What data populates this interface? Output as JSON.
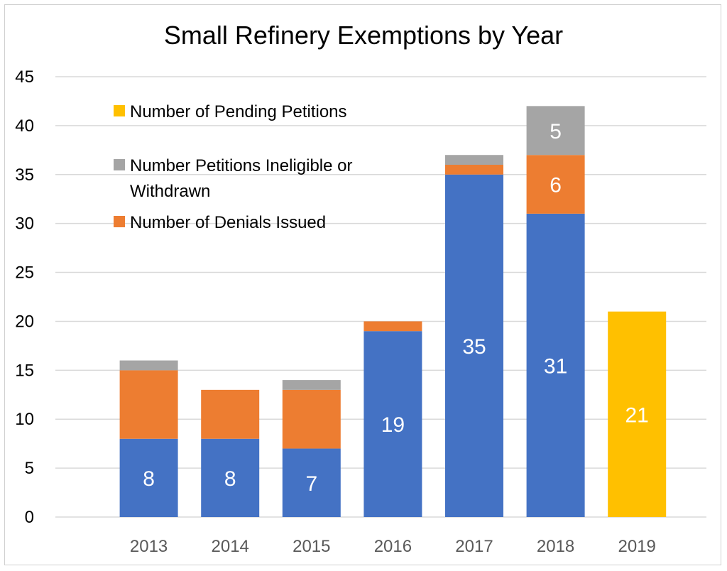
{
  "chart_data": {
    "type": "bar",
    "stacked": true,
    "title": "Small Refinery Exemptions by Year",
    "xlabel": "",
    "ylabel": "",
    "ylim": [
      0,
      45
    ],
    "yticks": [
      0,
      5,
      10,
      15,
      20,
      25,
      30,
      35,
      40,
      45
    ],
    "grid": true,
    "legend_position": "top-left",
    "categories": [
      "2013",
      "2014",
      "2015",
      "2016",
      "2017",
      "2018",
      "2019"
    ],
    "series": [
      {
        "key": "granted",
        "color": "#4472C4",
        "values": [
          8,
          8,
          7,
          19,
          35,
          31,
          0
        ],
        "labels": [
          "8",
          "8",
          "7",
          "19",
          "35",
          "31",
          ""
        ]
      },
      {
        "key": "denials",
        "name": "Number of Denials Issued",
        "color": "#ED7D31",
        "values": [
          7,
          5,
          6,
          1,
          1,
          6,
          0
        ],
        "labels": [
          "",
          "",
          "",
          "",
          "",
          "6",
          ""
        ]
      },
      {
        "key": "ineligible",
        "name": "Number Petitions  Ineligible or Withdrawn",
        "color": "#A5A5A5",
        "values": [
          1,
          0,
          1,
          0,
          1,
          5,
          0
        ],
        "labels": [
          "",
          "",
          "",
          "",
          "",
          "5",
          ""
        ]
      },
      {
        "key": "pending",
        "name": "Number of Pending Petitions",
        "color": "#FFC000",
        "values": [
          0,
          0,
          0,
          0,
          0,
          0,
          21
        ],
        "labels": [
          "",
          "",
          "",
          "",
          "",
          "",
          "21"
        ]
      }
    ],
    "legend": [
      {
        "series": "pending",
        "lines": [
          "Number of Pending Petitions"
        ],
        "color": "#FFC000"
      },
      {
        "series": "ineligible",
        "lines": [
          "Number Petitions  Ineligible or",
          "Withdrawn"
        ],
        "color": "#A5A5A5"
      },
      {
        "series": "denials",
        "lines": [
          "Number of Denials Issued"
        ],
        "color": "#ED7D31"
      }
    ]
  }
}
